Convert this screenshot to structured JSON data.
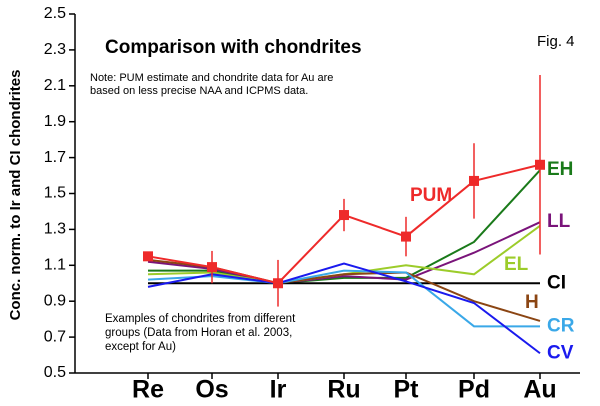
{
  "chart_data": {
    "type": "line",
    "title": "Comparison with chondrites",
    "figure_label": "Fig. 4",
    "note": [
      "Note: PUM estimate and chondrite data for Au are",
      "based on less precise NAA and ICPMS data."
    ],
    "caption": [
      "Examples of chondrites from different",
      "groups (Data from Horan et al. 2003,",
      "except for Au)"
    ],
    "y_label": "Conc. norm. to Ir and CI chondrites",
    "categories": [
      "Re",
      "Os",
      "Ir",
      "Ru",
      "Pt",
      "Pd",
      "Au"
    ],
    "ylim": [
      0.5,
      2.5
    ],
    "yticks": [
      0.5,
      0.7,
      0.9,
      1.1,
      1.3,
      1.5,
      1.7,
      1.9,
      2.1,
      2.3,
      2.5
    ],
    "series": [
      {
        "name": "EH",
        "color": "#1a7a1a",
        "values": [
          1.07,
          1.07,
          1.0,
          1.03,
          1.03,
          1.23,
          1.63
        ]
      },
      {
        "name": "LL",
        "color": "#7a147a",
        "values": [
          1.12,
          1.08,
          1.0,
          1.04,
          1.02,
          1.17,
          1.34
        ]
      },
      {
        "name": "EL",
        "color": "#9ccc2a",
        "values": [
          1.05,
          1.06,
          1.0,
          1.05,
          1.1,
          1.05,
          1.32
        ]
      },
      {
        "name": "CI",
        "color": "#000000",
        "values": [
          1.0,
          1.0,
          1.0,
          1.0,
          1.0,
          1.0,
          1.0
        ]
      },
      {
        "name": "H",
        "color": "#8b4513",
        "values": [
          1.13,
          1.09,
          1.0,
          1.05,
          1.06,
          0.9,
          0.79
        ]
      },
      {
        "name": "CR",
        "color": "#3aa8e8",
        "values": [
          1.02,
          1.04,
          1.0,
          1.07,
          1.06,
          0.76,
          0.76
        ]
      },
      {
        "name": "CV",
        "color": "#1a1aee",
        "values": [
          0.98,
          1.05,
          1.0,
          1.11,
          1.01,
          0.89,
          0.61
        ]
      },
      {
        "name": "PUM",
        "color": "#ee2a2a",
        "marker": "square",
        "values": [
          1.15,
          1.09,
          1.0,
          1.38,
          1.26,
          1.57,
          1.66
        ],
        "errors": [
          0.02,
          0.09,
          0.13,
          0.09,
          0.11,
          0.21,
          0.5
        ]
      }
    ]
  }
}
